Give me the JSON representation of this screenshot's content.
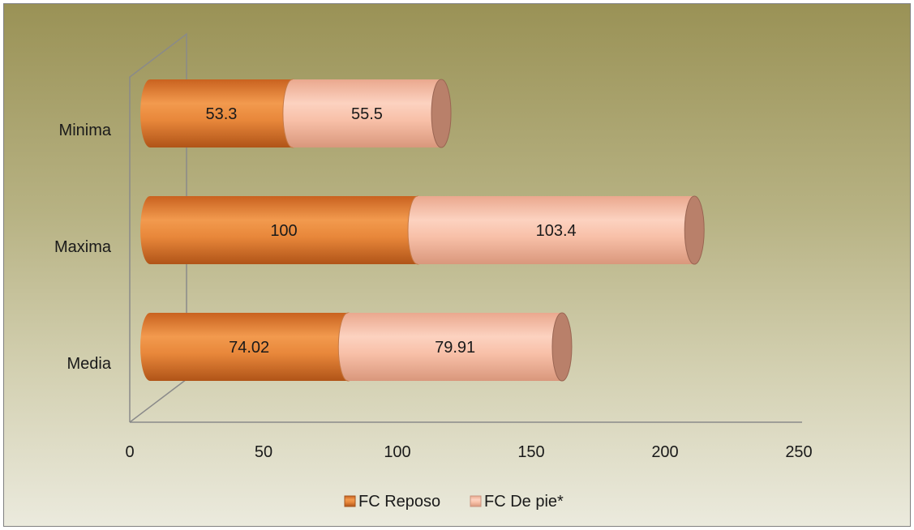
{
  "chart_data": {
    "type": "bar",
    "orientation": "horizontal",
    "stacked": true,
    "style": "3d-cylinder",
    "categories": [
      "Minima",
      "Maxima",
      "Media"
    ],
    "series": [
      {
        "name": "FC Reposo",
        "values": [
          53.3,
          100,
          74.02
        ],
        "color": "#e8873a"
      },
      {
        "name": "FC De pie*",
        "values": [
          55.5,
          103.4,
          79.91
        ],
        "color": "#f8c0a8"
      }
    ],
    "xlim": [
      0,
      250
    ],
    "x_ticks": [
      "0",
      "50",
      "100",
      "150",
      "200",
      "250"
    ],
    "title": "",
    "xlabel": "",
    "ylabel": "",
    "grid": false,
    "legend_position": "bottom"
  }
}
